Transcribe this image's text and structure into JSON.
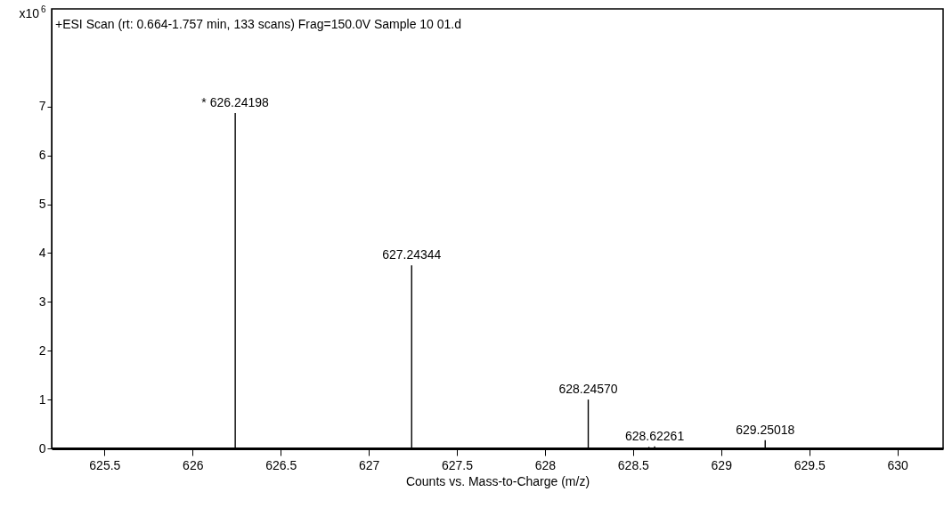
{
  "chart_data": {
    "type": "bar",
    "title": "+ESI Scan (rt: 0.664-1.757 min, 133 scans) Frag=150.0V Sample 10 01.d",
    "xlabel": "Counts vs. Mass-to-Charge (m/z)",
    "ylabel": "x10$^{6}$",
    "x": [
      626.24198,
      627.24344,
      628.2457,
      628.59,
      628.62261,
      629.25018
    ],
    "values": [
      6.87,
      3.75,
      1.0,
      0.03,
      0.04,
      0.17
    ],
    "annotations": [
      {
        "text": "* 626.24198",
        "x": 626.24198,
        "y": 6.87
      },
      {
        "text": "627.24344",
        "x": 627.24344,
        "y": 3.75
      },
      {
        "text": "628.24570",
        "x": 628.2457,
        "y": 1.0
      },
      {
        "text": "628.62261",
        "x": 628.62261,
        "y": 0.04
      },
      {
        "text": "629.25018",
        "x": 629.25018,
        "y": 0.17
      }
    ],
    "color": "#000000",
    "xlim": [
      625.2,
      630.26
    ],
    "xticks": [
      625.5,
      626,
      626.5,
      627,
      627.5,
      628,
      628.5,
      629,
      629.5,
      630
    ],
    "ylim": [
      0,
      9
    ],
    "yticks": [
      0,
      1,
      2,
      3,
      4,
      5,
      6,
      7
    ],
    "grid": false
  }
}
